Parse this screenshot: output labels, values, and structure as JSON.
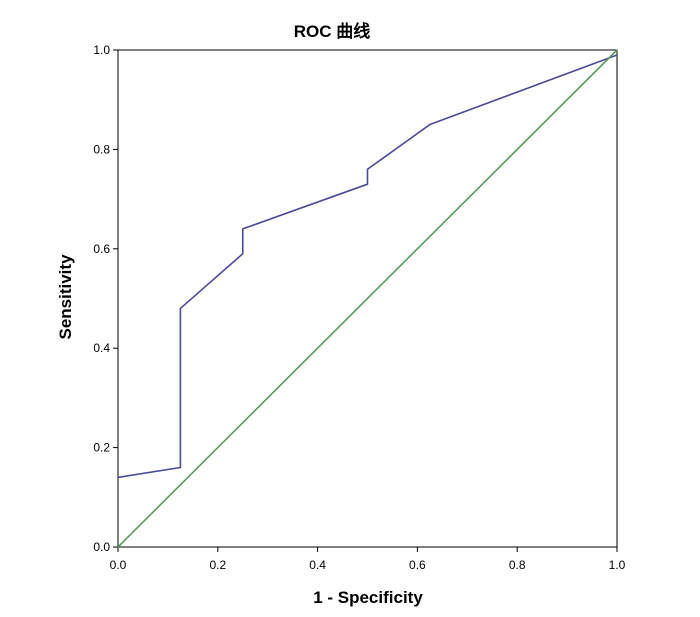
{
  "chart_data": {
    "type": "line",
    "title": "ROC 曲线",
    "xlabel": "1 - Specificity",
    "ylabel": "Sensitivity",
    "xlim": [
      0.0,
      1.0
    ],
    "ylim": [
      0.0,
      1.0
    ],
    "x_ticks": [
      "0.0",
      "0.2",
      "0.4",
      "0.6",
      "0.8",
      "1.0"
    ],
    "y_ticks": [
      "0.0",
      "0.2",
      "0.4",
      "0.6",
      "0.8",
      "1.0"
    ],
    "grid": false,
    "legend": "none",
    "series": [
      {
        "color": "#4a4a9a",
        "x": [
          0.0,
          0.125,
          0.125,
          0.25,
          0.25,
          0.5,
          0.5,
          0.625,
          1.0
        ],
        "y": [
          0.14,
          0.16,
          0.48,
          0.59,
          0.64,
          0.73,
          0.76,
          0.85,
          0.99
        ]
      },
      {
        "color": "#5a9a5a",
        "x": [
          0.0,
          1.0
        ],
        "y": [
          0.0,
          1.0
        ]
      }
    ]
  }
}
